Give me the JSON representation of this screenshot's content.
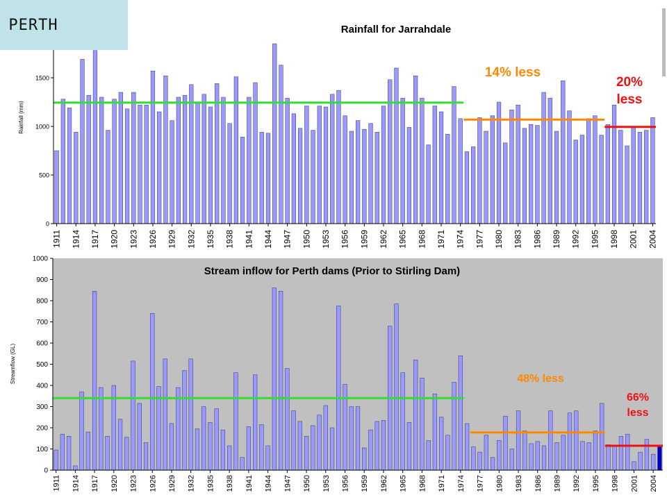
{
  "badge": {
    "label": "PERTH"
  },
  "chart_data": [
    {
      "type": "bar",
      "title": "Rainfall for Jarrahdale",
      "ylabel": "Rainfall (mm)",
      "xlabel": "",
      "ylim": [
        0,
        2000
      ],
      "y_ticks": [
        "0",
        "500",
        "1000",
        "1500"
      ],
      "y_tick_values": [
        0,
        500,
        1000,
        1500
      ],
      "x_start_year": 1911,
      "x_tick_labels": [
        "1911",
        "1914",
        "1917",
        "1920",
        "1923",
        "1926",
        "1929",
        "1932",
        "1935",
        "1938",
        "1941",
        "1944",
        "1947",
        "1950",
        "1953",
        "1956",
        "1959",
        "1962",
        "1965",
        "1968",
        "1971",
        "1974",
        "1977",
        "1980",
        "1983",
        "1986",
        "1989",
        "1992",
        "1995",
        "1998",
        "2001",
        "2004"
      ],
      "bar_color": "#9999ff",
      "background": "#ffffff",
      "grid": false,
      "values": [
        750,
        1280,
        1190,
        940,
        1690,
        1320,
        1780,
        1300,
        960,
        1280,
        1350,
        1180,
        1350,
        1220,
        1220,
        1570,
        1150,
        1520,
        1060,
        1300,
        1320,
        1430,
        1250,
        1330,
        1200,
        1440,
        1300,
        1030,
        1510,
        890,
        1300,
        1450,
        940,
        930,
        1850,
        1630,
        1290,
        1130,
        980,
        1210,
        960,
        1210,
        1200,
        1330,
        1370,
        1110,
        950,
        1060,
        970,
        1030,
        940,
        1210,
        1480,
        1600,
        1290,
        990,
        1520,
        1290,
        810,
        1210,
        1150,
        920,
        1410,
        1080,
        740,
        790,
        1090,
        950,
        1110,
        1250,
        830,
        1170,
        1220,
        980,
        1020,
        1010,
        1350,
        1290,
        950,
        1470,
        1160,
        860,
        910,
        1080,
        1110,
        910,
        1020,
        1220,
        960,
        800,
        1000,
        940,
        960,
        1090
      ],
      "reference_lines": [
        {
          "color": "#33dd33",
          "value": 1245,
          "from_year": 1911,
          "to_year": 1974
        },
        {
          "color": "#ff8800",
          "value": 1070,
          "from_year": 1975,
          "to_year": 1996
        },
        {
          "color": "#ee1111",
          "value": 995,
          "from_year": 1997,
          "to_year": 2004
        }
      ],
      "annotations": [
        {
          "text": "14% less",
          "color": "#ff8800"
        },
        {
          "text": "20%",
          "color": "#ee1111"
        },
        {
          "text": "less",
          "color": "#ee1111"
        }
      ]
    },
    {
      "type": "bar",
      "title": "Stream inflow for Perth dams  (Prior to Stirling Dam)",
      "ylabel": "Streamflow (GL)",
      "xlabel": "",
      "ylim": [
        0,
        1000
      ],
      "y_ticks": [
        "0",
        "100",
        "200",
        "300",
        "400",
        "500",
        "600",
        "700",
        "800",
        "900",
        "1000"
      ],
      "y_tick_values": [
        0,
        100,
        200,
        300,
        400,
        500,
        600,
        700,
        800,
        900,
        1000
      ],
      "x_start_year": 1911,
      "x_tick_labels": [
        "1911",
        "1914",
        "1917",
        "1920",
        "1923",
        "1926",
        "1929",
        "1932",
        "1935",
        "1938",
        "1941",
        "1944",
        "1947",
        "1950",
        "1953",
        "1956",
        "1959",
        "1962",
        "1965",
        "1968",
        "1971",
        "1974",
        "1977",
        "1980",
        "1983",
        "1986",
        "1989",
        "1992",
        "1995",
        "1998",
        "2001",
        "2004"
      ],
      "bar_color": "#9999ff",
      "highlight_bar": {
        "year": 2005,
        "color": "#0000cc"
      },
      "background": "#c0c0c0",
      "grid": false,
      "values": [
        95,
        170,
        160,
        20,
        370,
        180,
        845,
        390,
        160,
        400,
        240,
        155,
        515,
        315,
        130,
        740,
        395,
        525,
        220,
        390,
        470,
        525,
        195,
        300,
        225,
        290,
        190,
        115,
        460,
        60,
        205,
        450,
        215,
        115,
        860,
        845,
        480,
        280,
        230,
        160,
        210,
        260,
        305,
        200,
        775,
        405,
        300,
        300,
        105,
        190,
        230,
        235,
        680,
        785,
        460,
        225,
        520,
        435,
        140,
        360,
        250,
        165,
        415,
        540,
        220,
        110,
        85,
        165,
        60,
        140,
        255,
        100,
        280,
        185,
        125,
        135,
        115,
        280,
        130,
        165,
        270,
        280,
        135,
        130,
        185,
        315,
        120,
        115,
        160,
        170,
        40,
        85,
        145,
        75,
        110
      ],
      "reference_lines": [
        {
          "color": "#33dd33",
          "value": 340,
          "from_year": 1911,
          "to_year": 1974
        },
        {
          "color": "#ff8800",
          "value": 178,
          "from_year": 1976,
          "to_year": 1996
        },
        {
          "color": "#ee1111",
          "value": 115,
          "from_year": 1997,
          "to_year": 2005
        }
      ],
      "annotations": [
        {
          "text": "48% less",
          "color": "#ff8800"
        },
        {
          "text": "66%",
          "color": "#ee1111"
        },
        {
          "text": "less",
          "color": "#ee1111"
        }
      ]
    }
  ]
}
